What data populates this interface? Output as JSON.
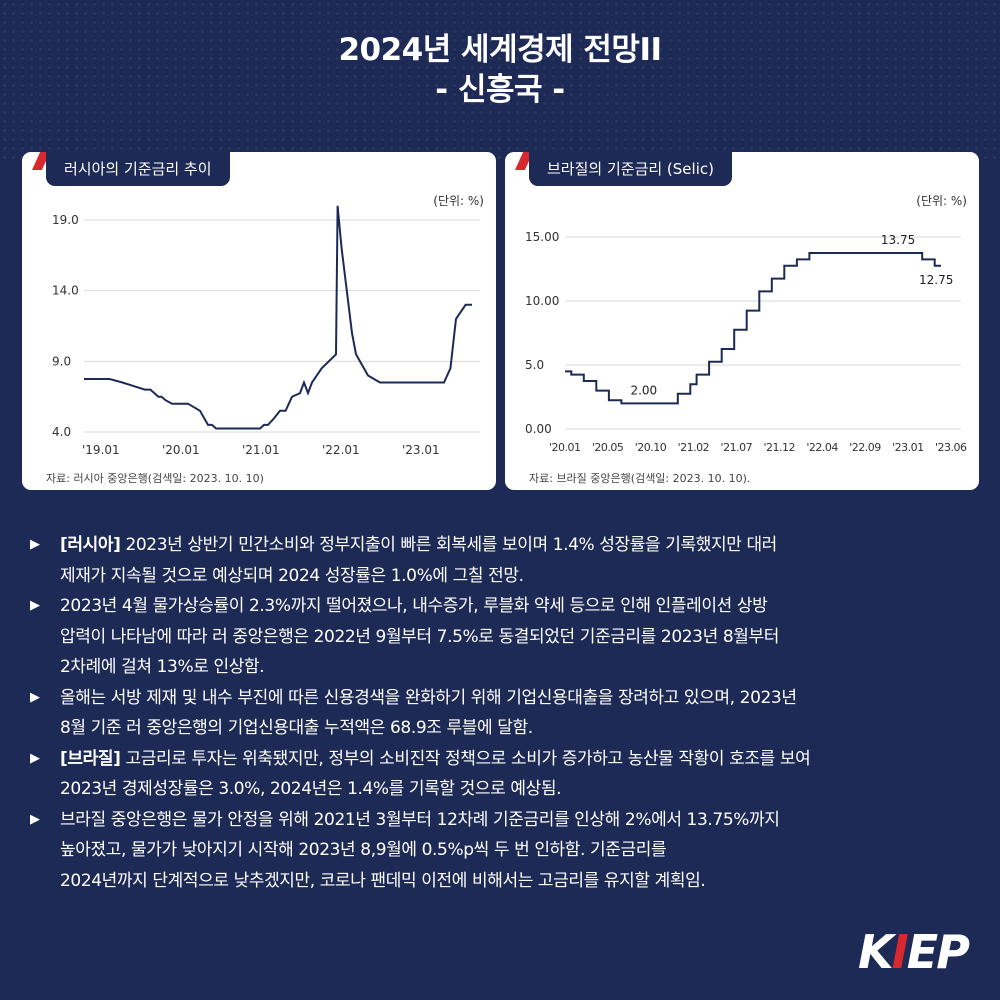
{
  "header": {
    "title_line1": "2024년 세계경제 전망II",
    "title_line2": "- 신흥국 -"
  },
  "colors": {
    "background": "#1d2a55",
    "line": "#1d2a55",
    "accent": "#d7282f"
  },
  "chart_data": [
    {
      "type": "line",
      "title": "러시아의 기준금리 추이",
      "unit_label": "(단위: %)",
      "source": "자료:  러시아 중앙은행(검색일: 2023. 10. 10)",
      "ylim": [
        4.0,
        19.0
      ],
      "yticks": [
        "19.0",
        "14.0",
        "9.0",
        "4.0"
      ],
      "xticks": [
        "'19.01",
        "'20.01",
        "'21.01",
        "'22.01",
        "'23.01"
      ],
      "x_start": 2019.0,
      "x_end": 2023.95,
      "grid": true,
      "series": [
        {
          "x": [
            2019.0,
            2019.32,
            2019.48,
            2019.62,
            2019.76,
            2019.83,
            2019.93,
            2019.97,
            2020.02,
            2020.1,
            2020.3,
            2020.45,
            2020.55,
            2020.6,
            2020.65,
            2021.2,
            2021.25,
            2021.3,
            2021.38,
            2021.45,
            2021.52,
            2021.6,
            2021.7,
            2021.75,
            2021.8,
            2021.85,
            2021.97,
            2022.15,
            2022.17,
            2022.22,
            2022.35,
            2022.4,
            2022.55,
            2022.7,
            2023.0,
            2023.5,
            2023.58,
            2023.65,
            2023.77,
            2023.85
          ],
          "y": [
            7.75,
            7.75,
            7.5,
            7.25,
            7.0,
            7.0,
            6.5,
            6.5,
            6.25,
            6.0,
            6.0,
            5.5,
            4.5,
            4.5,
            4.25,
            4.25,
            4.5,
            4.5,
            5.0,
            5.5,
            5.5,
            6.5,
            6.75,
            7.5,
            6.75,
            7.5,
            8.5,
            9.5,
            20.0,
            17.0,
            11.0,
            9.5,
            8.0,
            7.5,
            7.5,
            7.5,
            8.5,
            12.0,
            13.0,
            13.0
          ]
        }
      ]
    },
    {
      "type": "line",
      "title": "브라질의 기준금리 (Selic)",
      "unit_label": "(단위: %)",
      "source": "자료: 브라질 중앙은행(검색일: 2023. 10. 10).",
      "ylim": [
        0.0,
        15.0
      ],
      "yticks": [
        "15.00",
        "10.00",
        "5.0",
        "0.00"
      ],
      "xticks": [
        "'20.01",
        "'20.05",
        "'20.10",
        "'21.02",
        "'21.07",
        "'21.12",
        "'22.04",
        "'22.09",
        "'23.01",
        "'23.06"
      ],
      "grid": true,
      "annotations": [
        "2.00",
        "13.75",
        "12.75"
      ],
      "series": [
        {
          "values": [
            4.5,
            4.25,
            4.25,
            3.75,
            3.75,
            3.0,
            3.0,
            2.25,
            2.25,
            2.0,
            2.0,
            2.0,
            2.0,
            2.0,
            2.0,
            2.0,
            2.0,
            2.0,
            2.75,
            2.75,
            3.5,
            4.25,
            4.25,
            5.25,
            5.25,
            6.25,
            6.25,
            7.75,
            7.75,
            9.25,
            9.25,
            10.75,
            10.75,
            11.75,
            11.75,
            12.75,
            12.75,
            13.25,
            13.25,
            13.75,
            13.75,
            13.75,
            13.75,
            13.75,
            13.75,
            13.75,
            13.75,
            13.75,
            13.75,
            13.75,
            13.75,
            13.75,
            13.75,
            13.75,
            13.75,
            13.75,
            13.75,
            13.25,
            13.25,
            12.75,
            12.75
          ]
        }
      ]
    }
  ],
  "bullets": [
    {
      "tag": "[러시아]",
      "lines": [
        " 2023년 상반기 민간소비와 정부지출이 빠른 회복세를 보이며 1.4% 성장률을 기록했지만 대러",
        "제재가 지속될 것으로 예상되며 2024 성장률은 1.0%에 그칠 전망."
      ]
    },
    {
      "tag": "",
      "lines": [
        "2023년 4월 물가상승률이 2.3%까지 떨어졌으나, 내수증가, 루블화 약세 등으로 인해 인플레이션 상방",
        "압력이 나타남에 따라 러 중앙은행은 2022년 9월부터 7.5%로 동결되었던 기준금리를 2023년 8월부터",
        "2차례에 걸쳐 13%로 인상함."
      ]
    },
    {
      "tag": "",
      "lines": [
        "올해는 서방 제재 및 내수 부진에 따른 신용경색을 완화하기 위해 기업신용대출을 장려하고 있으며, 2023년",
        "8월 기준 러 중앙은행의 기업신용대출 누적액은 68.9조 루블에 달함."
      ]
    },
    {
      "tag": "[브라질]",
      "lines": [
        " 고금리로 투자는 위축됐지만, 정부의 소비진작 정책으로 소비가 증가하고 농산물 작황이 호조를 보여",
        "2023년 경제성장률은 3.0%, 2024년은 1.4%를 기록할 것으로 예상됨."
      ]
    },
    {
      "tag": "",
      "lines": [
        "브라질 중앙은행은 물가 안정을 위해 2021년 3월부터 12차례 기준금리를 인상해 2%에서 13.75%까지",
        "높아졌고, 물가가 낮아지기 시작해 2023년 8,9월에 0.5%p씩 두 번 인하함. 기준금리를",
        "2024년까지 단계적으로 낮추겠지만, 코로나 팬데믹 이전에 비해서는 고금리를 유지할 계획임."
      ]
    }
  ],
  "logo": {
    "part1": "K",
    "part2": "I",
    "part3": "EP"
  }
}
